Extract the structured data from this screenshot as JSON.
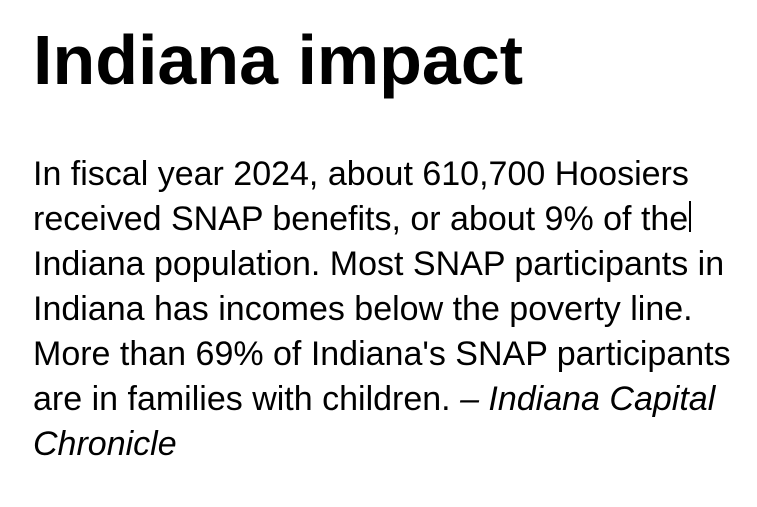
{
  "document": {
    "title": "Indiana impact",
    "paragraph": {
      "lines": [
        {
          "text": "In fiscal year 2024, about 610,700 Hoosiers",
          "italic_text": ""
        },
        {
          "text": "received SNAP benefits, or about 9% of the",
          "italic_text": ""
        },
        {
          "text": "Indiana population. Most SNAP participants in",
          "italic_text": ""
        },
        {
          "text": "Indiana has incomes below the poverty line.",
          "italic_text": ""
        },
        {
          "text": "More than 69% of Indiana's SNAP participants",
          "italic_text": ""
        },
        {
          "text": "are in families with children. ",
          "italic_text": "– Indiana Capital"
        },
        {
          "text": "",
          "italic_text": "Chronicle"
        }
      ]
    },
    "caret": {
      "visible": true,
      "after_line": 2,
      "after_text": "the"
    }
  },
  "colors": {
    "text": "#000000",
    "background": "#ffffff",
    "caret": "#000000"
  }
}
